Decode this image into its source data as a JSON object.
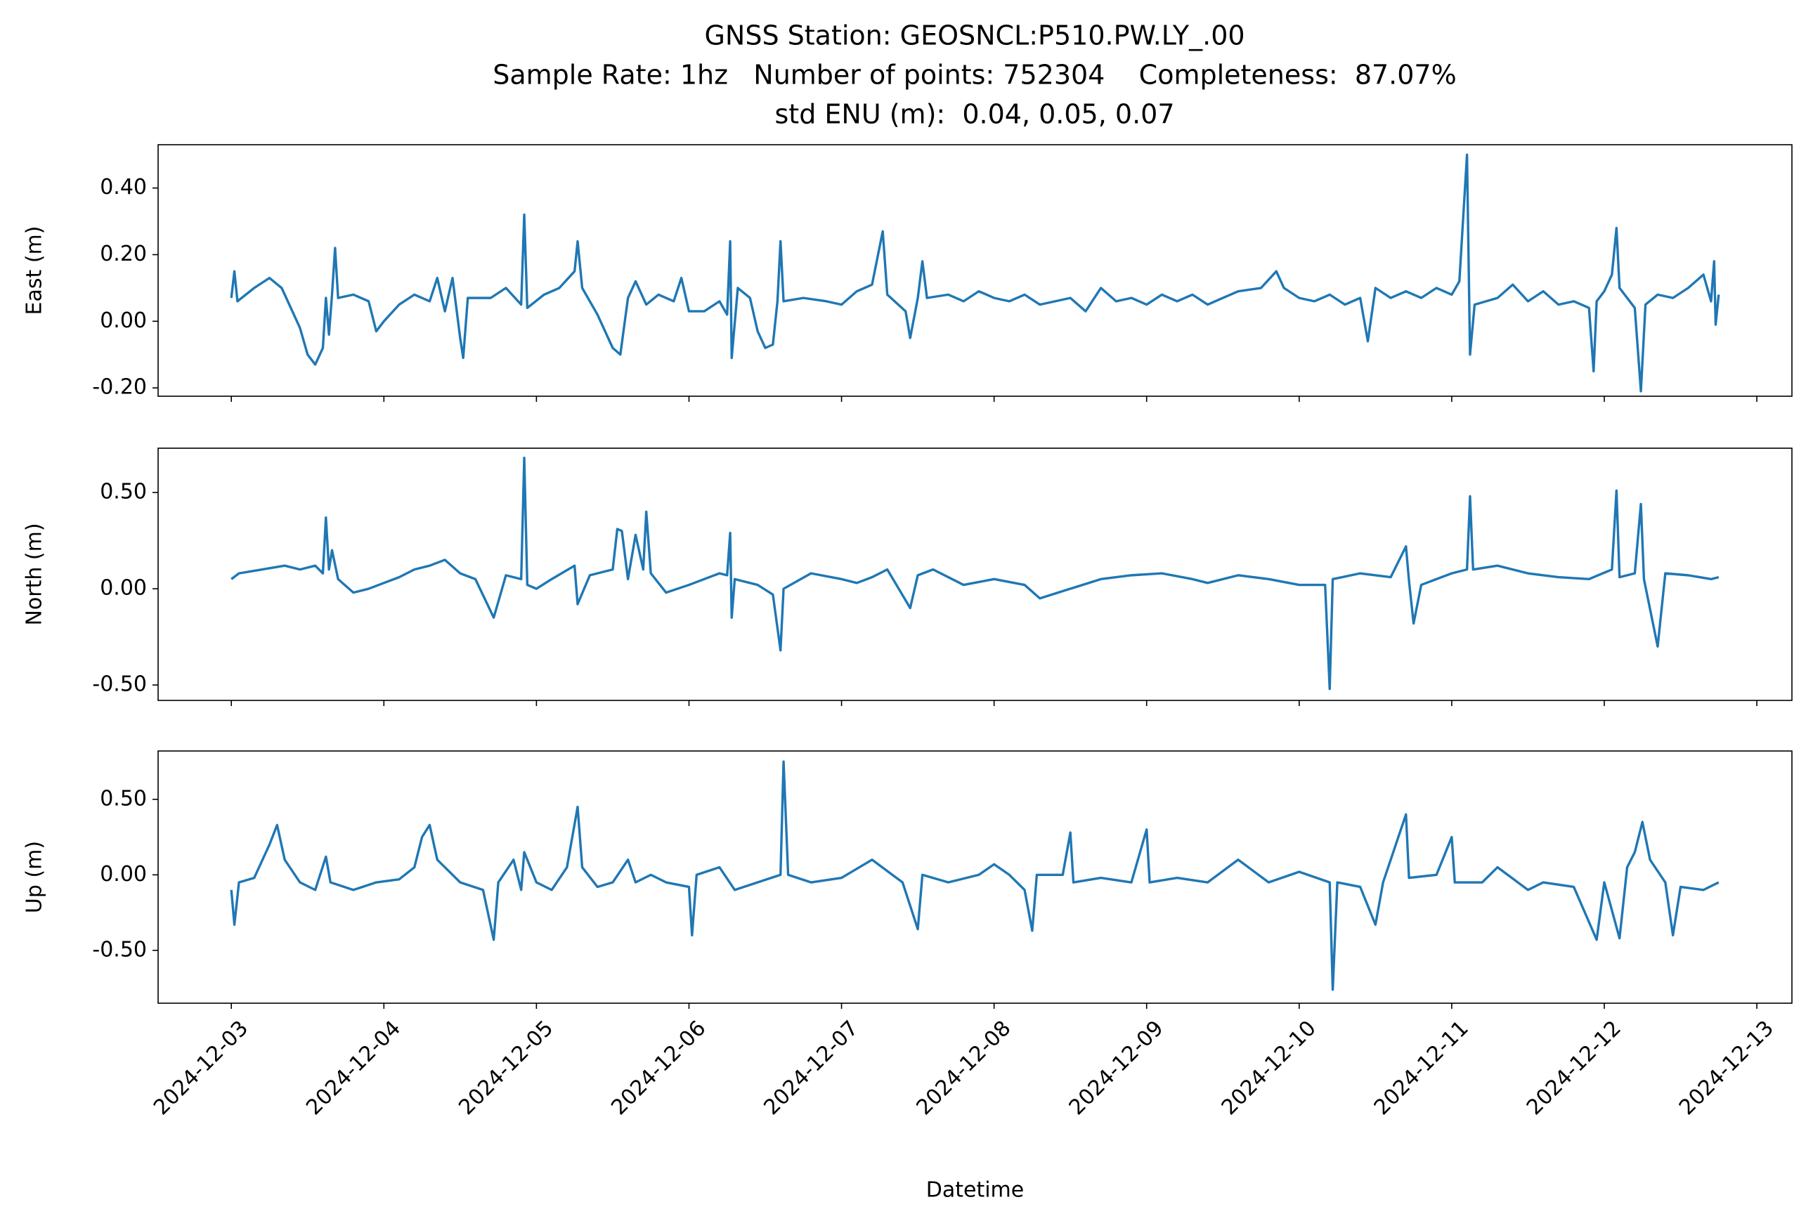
{
  "title": [
    "GNSS Station: GEOSNCL:P510.PW.LY_.00",
    "Sample Rate: 1hz   Number of points: 752304    Completeness:  87.07%",
    "std ENU (m):  0.04, 0.05, 0.07"
  ],
  "chart_data": [
    {
      "type": "line",
      "ylabel": "East (m)",
      "color": "#1f77b4",
      "x": [
        3.0,
        3.02,
        3.04,
        3.15,
        3.25,
        3.33,
        3.4,
        3.45,
        3.5,
        3.55,
        3.6,
        3.62,
        3.64,
        3.66,
        3.68,
        3.7,
        3.8,
        3.9,
        3.95,
        4.0,
        4.1,
        4.2,
        4.3,
        4.35,
        4.4,
        4.45,
        4.5,
        4.52,
        4.55,
        4.7,
        4.8,
        4.9,
        4.92,
        4.94,
        5.05,
        5.15,
        5.25,
        5.27,
        5.3,
        5.4,
        5.5,
        5.55,
        5.6,
        5.65,
        5.72,
        5.8,
        5.9,
        5.95,
        6.0,
        6.1,
        6.2,
        6.25,
        6.27,
        6.28,
        6.32,
        6.4,
        6.45,
        6.5,
        6.55,
        6.58,
        6.6,
        6.62,
        6.75,
        6.9,
        7.0,
        7.1,
        7.2,
        7.27,
        7.3,
        7.42,
        7.45,
        7.5,
        7.53,
        7.56,
        7.7,
        7.8,
        7.9,
        8.0,
        8.1,
        8.2,
        8.3,
        8.4,
        8.5,
        8.6,
        8.7,
        8.8,
        8.9,
        9.0,
        9.1,
        9.2,
        9.3,
        9.4,
        9.5,
        9.6,
        9.75,
        9.85,
        9.9,
        10.0,
        10.1,
        10.2,
        10.3,
        10.4,
        10.45,
        10.5,
        10.6,
        10.7,
        10.8,
        10.9,
        11.0,
        11.05,
        11.1,
        11.12,
        11.15,
        11.3,
        11.4,
        11.5,
        11.6,
        11.7,
        11.8,
        11.9,
        11.93,
        11.95,
        12.0,
        12.05,
        12.08,
        12.1,
        12.2,
        12.24,
        12.27,
        12.35,
        12.45,
        12.55,
        12.65,
        12.7,
        12.72,
        12.73,
        12.75
      ],
      "values": [
        0.07,
        0.15,
        0.06,
        0.1,
        0.13,
        0.1,
        0.03,
        -0.02,
        -0.1,
        -0.13,
        -0.08,
        0.07,
        -0.04,
        0.08,
        0.22,
        0.07,
        0.08,
        0.06,
        -0.03,
        0.0,
        0.05,
        0.08,
        0.06,
        0.13,
        0.03,
        0.13,
        -0.05,
        -0.11,
        0.07,
        0.07,
        0.1,
        0.05,
        0.32,
        0.04,
        0.08,
        0.1,
        0.15,
        0.24,
        0.1,
        0.02,
        -0.08,
        -0.1,
        0.07,
        0.12,
        0.05,
        0.08,
        0.06,
        0.13,
        0.03,
        0.03,
        0.06,
        0.02,
        0.24,
        -0.11,
        0.1,
        0.07,
        -0.03,
        -0.08,
        -0.07,
        0.06,
        0.24,
        0.06,
        0.07,
        0.06,
        0.05,
        0.09,
        0.11,
        0.27,
        0.08,
        0.03,
        -0.05,
        0.07,
        0.18,
        0.07,
        0.08,
        0.06,
        0.09,
        0.07,
        0.06,
        0.08,
        0.05,
        0.06,
        0.07,
        0.03,
        0.1,
        0.06,
        0.07,
        0.05,
        0.08,
        0.06,
        0.08,
        0.05,
        0.07,
        0.09,
        0.1,
        0.15,
        0.1,
        0.07,
        0.06,
        0.08,
        0.05,
        0.07,
        -0.06,
        0.1,
        0.07,
        0.09,
        0.07,
        0.1,
        0.08,
        0.12,
        0.5,
        -0.1,
        0.05,
        0.07,
        0.11,
        0.06,
        0.09,
        0.05,
        0.06,
        0.04,
        -0.15,
        0.06,
        0.09,
        0.14,
        0.28,
        0.1,
        0.04,
        -0.21,
        0.05,
        0.08,
        0.07,
        0.1,
        0.14,
        0.06,
        0.18,
        -0.01,
        0.08
      ],
      "xlim": [
        2.52,
        13.23
      ],
      "ylim": [
        -0.225,
        0.53
      ],
      "yticks": [
        {
          "value": -0.2,
          "label": "-0.20"
        },
        {
          "value": 0,
          "label": "0.00"
        },
        {
          "value": 0.2,
          "label": "0.20"
        },
        {
          "value": 0.4,
          "label": "0.40"
        }
      ],
      "xticks": [
        3,
        4,
        5,
        6,
        7,
        8,
        9,
        10,
        11,
        12,
        13
      ]
    },
    {
      "type": "line",
      "ylabel": "North (m)",
      "color": "#1f77b4",
      "x": [
        3.0,
        3.05,
        3.2,
        3.35,
        3.45,
        3.55,
        3.6,
        3.62,
        3.64,
        3.66,
        3.7,
        3.8,
        3.9,
        4.0,
        4.1,
        4.2,
        4.3,
        4.4,
        4.5,
        4.6,
        4.72,
        4.8,
        4.9,
        4.92,
        4.94,
        5.0,
        5.1,
        5.25,
        5.27,
        5.35,
        5.5,
        5.53,
        5.56,
        5.6,
        5.65,
        5.7,
        5.72,
        5.75,
        5.85,
        6.0,
        6.2,
        6.25,
        6.27,
        6.28,
        6.3,
        6.45,
        6.55,
        6.6,
        6.62,
        6.8,
        7.0,
        7.1,
        7.2,
        7.3,
        7.45,
        7.5,
        7.6,
        7.8,
        8.0,
        8.2,
        8.3,
        8.5,
        8.7,
        8.9,
        9.1,
        9.3,
        9.4,
        9.6,
        9.8,
        10.0,
        10.17,
        10.2,
        10.22,
        10.4,
        10.6,
        10.7,
        10.72,
        10.75,
        10.8,
        11.0,
        11.1,
        11.12,
        11.14,
        11.3,
        11.5,
        11.7,
        11.9,
        12.05,
        12.08,
        12.1,
        12.2,
        12.24,
        12.26,
        12.35,
        12.4,
        12.55,
        12.7,
        12.75
      ],
      "values": [
        0.05,
        0.08,
        0.1,
        0.12,
        0.1,
        0.12,
        0.08,
        0.37,
        0.1,
        0.2,
        0.05,
        -0.02,
        0.0,
        0.03,
        0.06,
        0.1,
        0.12,
        0.15,
        0.08,
        0.05,
        -0.15,
        0.07,
        0.05,
        0.68,
        0.02,
        0.0,
        0.05,
        0.12,
        -0.08,
        0.07,
        0.1,
        0.31,
        0.3,
        0.05,
        0.28,
        0.1,
        0.4,
        0.08,
        -0.02,
        0.02,
        0.08,
        0.07,
        0.29,
        -0.15,
        0.05,
        0.02,
        -0.03,
        -0.32,
        0.0,
        0.08,
        0.05,
        0.03,
        0.06,
        0.1,
        -0.1,
        0.07,
        0.1,
        0.02,
        0.05,
        0.02,
        -0.05,
        0.0,
        0.05,
        0.07,
        0.08,
        0.05,
        0.03,
        0.07,
        0.05,
        0.02,
        0.02,
        -0.52,
        0.05,
        0.08,
        0.06,
        0.22,
        0.04,
        -0.18,
        0.02,
        0.08,
        0.1,
        0.48,
        0.1,
        0.12,
        0.08,
        0.06,
        0.05,
        0.1,
        0.51,
        0.06,
        0.08,
        0.44,
        0.05,
        -0.3,
        0.08,
        0.07,
        0.05,
        0.06
      ],
      "xlim": [
        2.52,
        13.23
      ],
      "ylim": [
        -0.58,
        0.73
      ],
      "yticks": [
        {
          "value": -0.5,
          "label": "-0.50"
        },
        {
          "value": 0,
          "label": "0.00"
        },
        {
          "value": 0.5,
          "label": "0.50"
        }
      ],
      "xticks": [
        3,
        4,
        5,
        6,
        7,
        8,
        9,
        10,
        11,
        12,
        13
      ]
    },
    {
      "type": "line",
      "ylabel": "Up (m)",
      "xlabel": "Datetime",
      "color": "#1f77b4",
      "x": [
        3.0,
        3.02,
        3.05,
        3.15,
        3.25,
        3.3,
        3.35,
        3.45,
        3.55,
        3.62,
        3.65,
        3.8,
        3.95,
        4.1,
        4.2,
        4.25,
        4.3,
        4.35,
        4.5,
        4.65,
        4.72,
        4.75,
        4.85,
        4.9,
        4.92,
        5.0,
        5.1,
        5.2,
        5.27,
        5.3,
        5.4,
        5.5,
        5.6,
        5.65,
        5.75,
        5.85,
        6.0,
        6.02,
        6.05,
        6.2,
        6.3,
        6.45,
        6.6,
        6.62,
        6.65,
        6.8,
        7.0,
        7.2,
        7.4,
        7.5,
        7.53,
        7.7,
        7.9,
        8.0,
        8.1,
        8.2,
        8.25,
        8.28,
        8.45,
        8.5,
        8.52,
        8.7,
        8.9,
        9.0,
        9.02,
        9.2,
        9.4,
        9.6,
        9.8,
        10.0,
        10.2,
        10.22,
        10.25,
        10.4,
        10.5,
        10.55,
        10.7,
        10.72,
        10.9,
        11.0,
        11.02,
        11.2,
        11.3,
        11.5,
        11.6,
        11.8,
        11.95,
        12.0,
        12.1,
        12.15,
        12.2,
        12.25,
        12.3,
        12.4,
        12.45,
        12.5,
        12.65,
        12.75
      ],
      "values": [
        -0.1,
        -0.33,
        -0.05,
        -0.02,
        0.2,
        0.33,
        0.1,
        -0.05,
        -0.1,
        0.12,
        -0.05,
        -0.1,
        -0.05,
        -0.03,
        0.05,
        0.25,
        0.33,
        0.1,
        -0.05,
        -0.1,
        -0.43,
        -0.05,
        0.1,
        -0.1,
        0.15,
        -0.05,
        -0.1,
        0.05,
        0.45,
        0.05,
        -0.08,
        -0.05,
        0.1,
        -0.05,
        0.0,
        -0.05,
        -0.08,
        -0.4,
        0.0,
        0.05,
        -0.1,
        -0.05,
        0.0,
        0.75,
        0.0,
        -0.05,
        -0.02,
        0.1,
        -0.05,
        -0.36,
        0.0,
        -0.05,
        0.0,
        0.07,
        0.0,
        -0.1,
        -0.37,
        0.0,
        0.0,
        0.28,
        -0.05,
        -0.02,
        -0.05,
        0.3,
        -0.05,
        -0.02,
        -0.05,
        0.1,
        -0.05,
        0.02,
        -0.05,
        -0.76,
        -0.05,
        -0.08,
        -0.33,
        -0.05,
        0.4,
        -0.02,
        0.0,
        0.25,
        -0.05,
        -0.05,
        0.05,
        -0.1,
        -0.05,
        -0.08,
        -0.43,
        -0.05,
        -0.42,
        0.05,
        0.15,
        0.35,
        0.1,
        -0.05,
        -0.4,
        -0.08,
        -0.1,
        -0.05
      ],
      "xlim": [
        2.52,
        13.23
      ],
      "ylim": [
        -0.85,
        0.82
      ],
      "yticks": [
        {
          "value": -0.5,
          "label": "-0.50"
        },
        {
          "value": 0,
          "label": "0.00"
        },
        {
          "value": 0.5,
          "label": "0.50"
        }
      ],
      "xticks": [
        {
          "value": 3,
          "label": "2024-12-03"
        },
        {
          "value": 4,
          "label": "2024-12-04"
        },
        {
          "value": 5,
          "label": "2024-12-05"
        },
        {
          "value": 6,
          "label": "2024-12-06"
        },
        {
          "value": 7,
          "label": "2024-12-07"
        },
        {
          "value": 8,
          "label": "2024-12-08"
        },
        {
          "value": 9,
          "label": "2024-12-09"
        },
        {
          "value": 10,
          "label": "2024-12-10"
        },
        {
          "value": 11,
          "label": "2024-12-11"
        },
        {
          "value": 12,
          "label": "2024-12-12"
        },
        {
          "value": 13,
          "label": "2024-12-13"
        }
      ]
    }
  ]
}
